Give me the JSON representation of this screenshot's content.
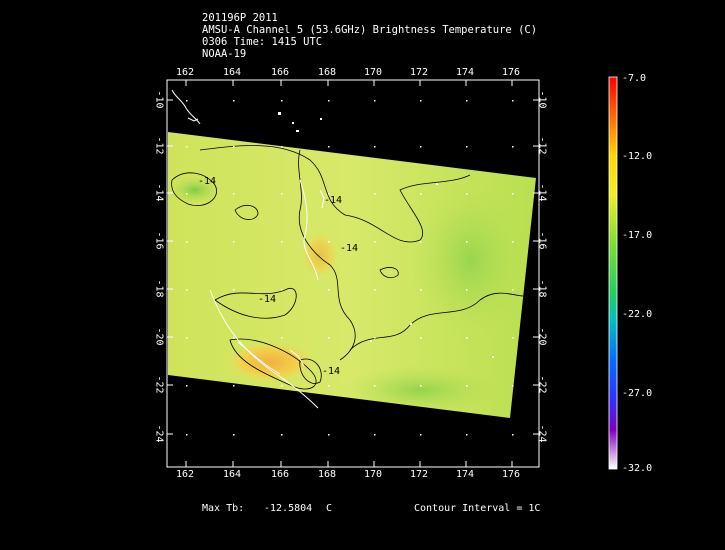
{
  "header": {
    "line1": "201196P 2011",
    "line2": "AMSU-A Channel 5 (53.6GHz) Brightness Temperature (C)",
    "line3": "0306 Time: 1415 UTC",
    "line4": "NOAA-19"
  },
  "map": {
    "lon_ticks": [
      "162",
      "164",
      "166",
      "168",
      "170",
      "172",
      "174",
      "176"
    ],
    "lat_ticks": [
      "-10",
      "-12",
      "-14",
      "-16",
      "-18",
      "-20",
      "-22",
      "-24"
    ],
    "contour_labels": [
      "-14",
      "-14",
      "-14",
      "-14",
      "-14"
    ]
  },
  "colorbar": {
    "labels": [
      "-7.0",
      "-12.0",
      "-17.0",
      "-22.0",
      "-27.0",
      "-32.0"
    ]
  },
  "footer": {
    "max_label": "Max Tb:",
    "max_value": "-12.5804",
    "max_unit": "C",
    "contour_interval": "Contour Interval = 1C"
  },
  "colors": {
    "background": "#000000",
    "field_main": "#d6e85a",
    "field_warm": "#f2d24a",
    "field_cool": "#8fd24a"
  }
}
